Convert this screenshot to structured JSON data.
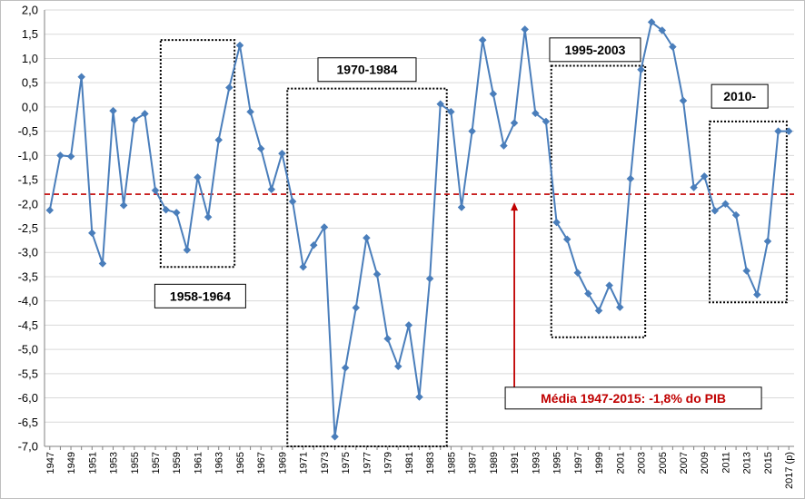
{
  "chart_data": {
    "type": "line",
    "title": "",
    "xlabel": "",
    "ylabel": "",
    "ylim": [
      -7.0,
      2.0
    ],
    "y_ticks": [
      "2,0",
      "1,5",
      "1,0",
      "0,5",
      "0,0",
      "-0,5",
      "-1,0",
      "-1,5",
      "-2,0",
      "-2,5",
      "-3,0",
      "-3,5",
      "-4,0",
      "-4,5",
      "-5,0",
      "-5,5",
      "-6,0",
      "-6,5",
      "-7,0"
    ],
    "x_tick_labels": [
      "1947",
      "1949",
      "1951",
      "1953",
      "1955",
      "1957",
      "1959",
      "1961",
      "1963",
      "1965",
      "1967",
      "1969",
      "1971",
      "1973",
      "1975",
      "1977",
      "1979",
      "1981",
      "1983",
      "1985",
      "1987",
      "1989",
      "1991",
      "1993",
      "1995",
      "1997",
      "1999",
      "2001",
      "2003",
      "2005",
      "2007",
      "2009",
      "2011",
      "2013",
      "2015",
      "2017 (p)"
    ],
    "series": [
      {
        "color": "#4a7ebb",
        "marker": "diamond",
        "x": [
          1947,
          1948,
          1949,
          1950,
          1951,
          1952,
          1953,
          1954,
          1955,
          1956,
          1957,
          1958,
          1959,
          1960,
          1961,
          1962,
          1963,
          1964,
          1965,
          1966,
          1967,
          1968,
          1969,
          1970,
          1971,
          1972,
          1973,
          1974,
          1975,
          1976,
          1977,
          1978,
          1979,
          1980,
          1981,
          1982,
          1983,
          1984,
          1985,
          1986,
          1987,
          1988,
          1989,
          1990,
          1991,
          1992,
          1993,
          1994,
          1995,
          1996,
          1997,
          1998,
          1999,
          2000,
          2001,
          2002,
          2003,
          2004,
          2005,
          2006,
          2007,
          2008,
          2009,
          2010,
          2011,
          2012,
          2013,
          2014,
          2015,
          2016,
          2017
        ],
        "values": [
          -2.13,
          -1.0,
          -1.02,
          0.62,
          -2.6,
          -3.23,
          -0.08,
          -2.03,
          -0.27,
          -0.14,
          -1.72,
          -2.12,
          -2.18,
          -2.95,
          -1.45,
          -2.27,
          -0.68,
          0.4,
          1.27,
          -0.1,
          -0.86,
          -1.7,
          -0.96,
          -1.95,
          -3.3,
          -2.85,
          -2.48,
          -6.8,
          -5.38,
          -4.14,
          -2.7,
          -3.45,
          -4.78,
          -5.35,
          -4.5,
          -5.98,
          -3.54,
          0.06,
          -0.1,
          -2.07,
          -0.5,
          1.38,
          0.27,
          -0.8,
          -0.33,
          1.6,
          -0.13,
          -0.3,
          -2.38,
          -2.73,
          -3.42,
          -3.85,
          -4.2,
          -3.68,
          -4.13,
          -1.48,
          0.77,
          1.75,
          1.58,
          1.24,
          0.13,
          -1.66,
          -1.43,
          -2.14,
          -2.0,
          -2.23,
          -3.38,
          -3.87,
          -2.77,
          -0.5,
          -0.5
        ]
      }
    ],
    "mean_line": {
      "value": -1.8,
      "color": "#c00000",
      "label": "Média 1947-2015: -1,8% do PIB"
    },
    "periods": [
      {
        "label": "1958-1964",
        "from": 1957.5,
        "to": 1964.5,
        "top": 1.38,
        "bottom": -3.3
      },
      {
        "label": "1970-1984",
        "from": 1969.5,
        "to": 1984.6,
        "top": 0.38,
        "bottom": -7.0
      },
      {
        "label": "1995-2003",
        "from": 1994.5,
        "to": 2003.4,
        "top": 0.85,
        "bottom": -4.75
      },
      {
        "label": "2010-",
        "from": 2009.5,
        "to": 2016.8,
        "top": -0.3,
        "bottom": -4.03
      }
    ],
    "grid": "horizontal",
    "legend": "none"
  }
}
